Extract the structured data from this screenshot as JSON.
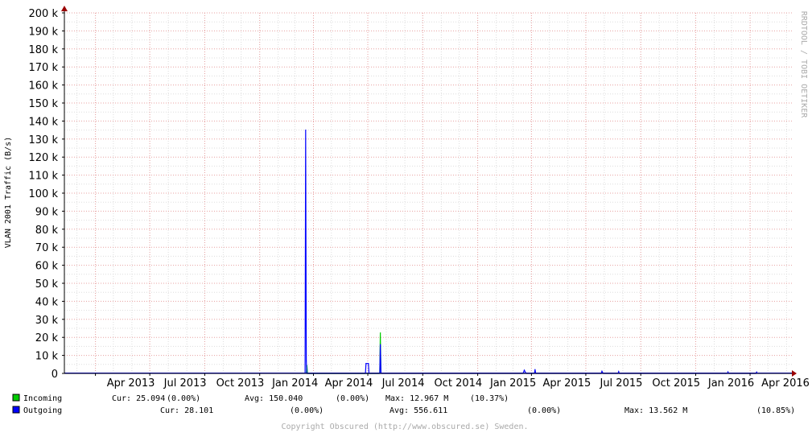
{
  "chart_data": {
    "type": "line",
    "ylabel": "VLAN 2001 Traffic (B/s)",
    "y_ticks": [
      0,
      10000,
      20000,
      30000,
      40000,
      50000,
      60000,
      70000,
      80000,
      90000,
      100000,
      110000,
      120000,
      130000,
      140000,
      150000,
      160000,
      170000,
      180000,
      190000,
      200000
    ],
    "y_tick_labels": [
      "0",
      "10 k",
      "20 k",
      "30 k",
      "40 k",
      "50 k",
      "60 k",
      "70 k",
      "80 k",
      "90 k",
      "100 k",
      "110 k",
      "120 k",
      "130 k",
      "140 k",
      "150 k",
      "160 k",
      "170 k",
      "180 k",
      "190 k",
      "200 k"
    ],
    "ylim": [
      0,
      200000
    ],
    "xlim": [
      "2013-02-08",
      "2016-06-10"
    ],
    "x_ticks": [
      {
        "label": "Apr 2013",
        "date": "2013-04-01"
      },
      {
        "label": "Jul 2013",
        "date": "2013-07-01"
      },
      {
        "label": "Oct 2013",
        "date": "2013-10-01"
      },
      {
        "label": "Jan 2014",
        "date": "2014-01-01"
      },
      {
        "label": "Apr 2014",
        "date": "2014-04-01"
      },
      {
        "label": "Jul 2014",
        "date": "2014-07-01"
      },
      {
        "label": "Oct 2014",
        "date": "2014-10-01"
      },
      {
        "label": "Jan 2015",
        "date": "2015-01-01"
      },
      {
        "label": "Apr 2015",
        "date": "2015-04-01"
      },
      {
        "label": "Jul 2015",
        "date": "2015-07-01"
      },
      {
        "label": "Oct 2015",
        "date": "2015-10-01"
      },
      {
        "label": "Jan 2016",
        "date": "2016-01-01"
      },
      {
        "label": "Apr 2016",
        "date": "2016-04-01"
      }
    ],
    "grid": true,
    "legend_position": "bottom-left",
    "series": [
      {
        "name": "Incoming",
        "color": "#00cc00",
        "points": [
          {
            "x": "2014-03-20",
            "y": 0
          },
          {
            "x": "2014-03-21",
            "y": 4500
          },
          {
            "x": "2014-03-22",
            "y": 0
          },
          {
            "x": "2014-07-21",
            "y": 0
          },
          {
            "x": "2014-07-22",
            "y": 22500
          },
          {
            "x": "2014-07-23",
            "y": 0
          }
        ]
      },
      {
        "name": "Outgoing",
        "color": "#0000ff",
        "points": [
          {
            "x": "2014-03-18",
            "y": 0
          },
          {
            "x": "2014-03-19",
            "y": 135000
          },
          {
            "x": "2014-03-20",
            "y": 7000
          },
          {
            "x": "2014-03-21",
            "y": 0
          },
          {
            "x": "2014-06-27",
            "y": 0
          },
          {
            "x": "2014-06-28",
            "y": 5500
          },
          {
            "x": "2014-07-02",
            "y": 5500
          },
          {
            "x": "2014-07-03",
            "y": 0
          },
          {
            "x": "2014-07-21",
            "y": 0
          },
          {
            "x": "2014-07-22",
            "y": 16000
          },
          {
            "x": "2014-07-23",
            "y": 0
          },
          {
            "x": "2015-03-18",
            "y": 0
          },
          {
            "x": "2015-03-20",
            "y": 1800
          },
          {
            "x": "2015-03-23",
            "y": 0
          },
          {
            "x": "2015-04-06",
            "y": 0
          },
          {
            "x": "2015-04-07",
            "y": 2200
          },
          {
            "x": "2015-04-08",
            "y": 0
          },
          {
            "x": "2015-07-27",
            "y": 0
          },
          {
            "x": "2015-07-28",
            "y": 1200
          },
          {
            "x": "2015-07-30",
            "y": 0
          },
          {
            "x": "2015-08-24",
            "y": 0
          },
          {
            "x": "2015-08-25",
            "y": 1000
          },
          {
            "x": "2015-08-26",
            "y": 0
          },
          {
            "x": "2016-02-23",
            "y": 0
          },
          {
            "x": "2016-02-24",
            "y": 800
          },
          {
            "x": "2016-02-25",
            "y": 0
          },
          {
            "x": "2016-04-11",
            "y": 0
          },
          {
            "x": "2016-04-12",
            "y": 700
          },
          {
            "x": "2016-04-13",
            "y": 0
          }
        ]
      }
    ]
  },
  "legend": [
    {
      "name": "Incoming",
      "color": "#00cc00",
      "cur": "Cur: 25.094",
      "cur_pct": "(0.00%)",
      "avg": "Avg: 150.040",
      "avg_pct": "(0.00%)",
      "max": "Max: 12.967 M",
      "max_pct": "(10.37%)"
    },
    {
      "name": "Outgoing",
      "color": "#0000ff",
      "cur": "Cur: 28.101",
      "cur_pct": "(0.00%)",
      "avg": "Avg: 556.611",
      "avg_pct": "(0.00%)",
      "max": "Max: 13.562 M",
      "max_pct": "(10.85%)"
    }
  ],
  "watermark": "RRDTOOL / TOBI OETIKER",
  "copyright": "Copyright Obscured (http://www.obscured.se) Sweden."
}
